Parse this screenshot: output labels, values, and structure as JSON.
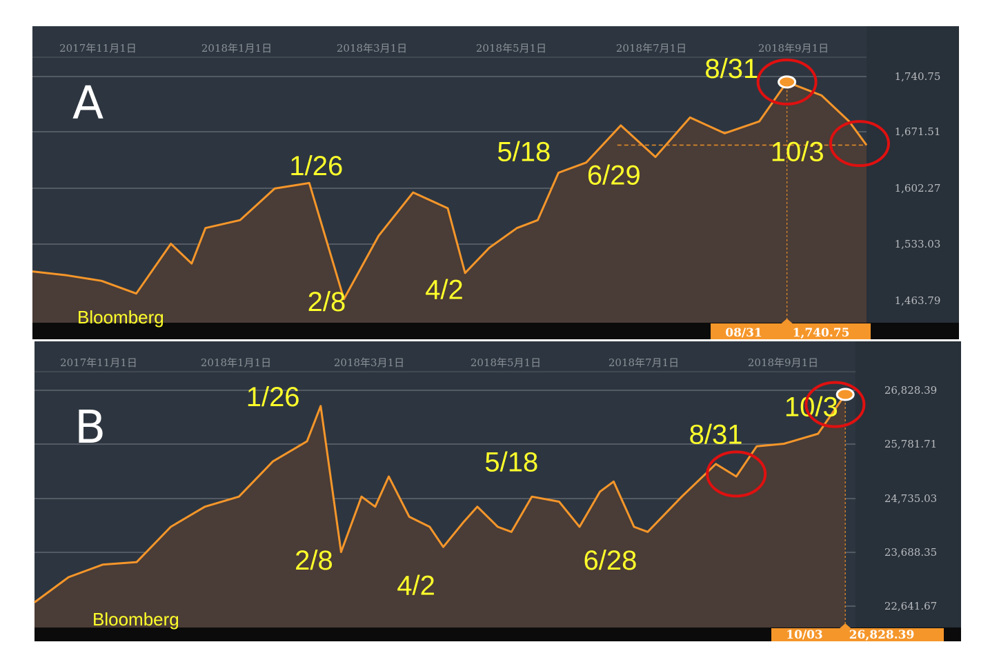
{
  "chart_data": [
    {
      "type": "area",
      "panel_label": "A",
      "source": "Bloomberg",
      "x_ticks": [
        "2017年11月1日",
        "2018年1月1日",
        "2018年3月1日",
        "2018年5月1日",
        "2018年7月1日",
        "2018年9月1日"
      ],
      "y_ticks": [
        "1,740.75",
        "1,671.51",
        "1,602.27",
        "1,533.03",
        "1,463.79"
      ],
      "ylim": [
        1435,
        1767
      ],
      "xlim": [
        0,
        12.05
      ],
      "line_color": "#f5962a",
      "fill_color": "#4a3c36",
      "x": [
        0,
        0.5,
        1,
        1.5,
        2,
        2.3,
        2.5,
        3,
        3.5,
        4,
        4.5,
        5,
        5.5,
        6,
        6.25,
        6.6,
        7,
        7.3,
        7.6,
        8,
        8.5,
        9,
        9.5,
        10,
        10.5,
        10.9,
        11.4,
        11.8,
        12.05
      ],
      "values": [
        1500,
        1495,
        1488,
        1472,
        1535,
        1510,
        1555,
        1565,
        1605,
        1612,
        1465,
        1545,
        1600,
        1580,
        1498,
        1530,
        1555,
        1565,
        1625,
        1638,
        1685,
        1645,
        1695,
        1675,
        1690,
        1740,
        1723,
        1690,
        1660
      ],
      "annotations": [
        {
          "text": "1/26",
          "x": 4.1,
          "y": 1622
        },
        {
          "text": "2/8",
          "x": 4.25,
          "y": 1450
        },
        {
          "text": "4/2",
          "x": 5.95,
          "y": 1465
        },
        {
          "text": "5/18",
          "x": 7.1,
          "y": 1640
        },
        {
          "text": "6/29",
          "x": 8.4,
          "y": 1610
        },
        {
          "text": "8/31",
          "x": 10.1,
          "y": 1745
        },
        {
          "text": "10/3",
          "x": 11.05,
          "y": 1640
        }
      ],
      "highlight": {
        "x": 10.9,
        "y": 1740,
        "date": "08/31",
        "value": "1,740.75"
      },
      "reference_level": 1660,
      "circled_points": [
        {
          "x": 10.9,
          "y": 1740
        },
        {
          "x": 11.95,
          "y": 1662
        }
      ]
    },
    {
      "type": "area",
      "panel_label": "B",
      "source": "Bloomberg",
      "x_ticks": [
        "2017年11月1日",
        "2018年1月1日",
        "2018年3月1日",
        "2018年5月1日",
        "2018年7月1日",
        "2018年9月1日"
      ],
      "y_ticks": [
        "26,828.39",
        "25,781.71",
        "24,735.03",
        "23,688.35",
        "22,641.67"
      ],
      "ylim": [
        22200,
        27200
      ],
      "xlim": [
        0,
        12.05
      ],
      "line_color": "#f5962a",
      "fill_color": "#4a3c36",
      "x": [
        0,
        0.5,
        1,
        1.5,
        2,
        2.5,
        3,
        3.5,
        4,
        4.2,
        4.5,
        4.8,
        5,
        5.2,
        5.5,
        5.8,
        6,
        6.3,
        6.5,
        6.8,
        7,
        7.3,
        7.7,
        8,
        8.3,
        8.5,
        8.8,
        9,
        9.5,
        10,
        10.3,
        10.6,
        11,
        11.5,
        11.9
      ],
      "values": [
        22700,
        23200,
        23450,
        23500,
        24200,
        24600,
        24800,
        25500,
        25900,
        26600,
        23700,
        24800,
        24600,
        25200,
        24400,
        24200,
        23800,
        24300,
        24600,
        24200,
        24100,
        24800,
        24700,
        24200,
        24900,
        25100,
        24200,
        24100,
        24800,
        25450,
        25200,
        25800,
        25850,
        26050,
        26830
      ],
      "annotations": [
        {
          "text": "1/26",
          "x": 3.5,
          "y": 26600
        },
        {
          "text": "2/8",
          "x": 4.1,
          "y": 23350
        },
        {
          "text": "4/2",
          "x": 5.6,
          "y": 22850
        },
        {
          "text": "5/18",
          "x": 7.0,
          "y": 25300
        },
        {
          "text": "6/28",
          "x": 8.45,
          "y": 23350
        },
        {
          "text": "8/31",
          "x": 10.0,
          "y": 25850
        },
        {
          "text": "10/3",
          "x": 11.4,
          "y": 26400
        }
      ],
      "highlight": {
        "x": 11.9,
        "y": 26830,
        "date": "10/03",
        "value": "26,828.39"
      },
      "circled_points": [
        {
          "x": 10.3,
          "y": 25250
        },
        {
          "x": 11.75,
          "y": 26630
        }
      ]
    }
  ]
}
